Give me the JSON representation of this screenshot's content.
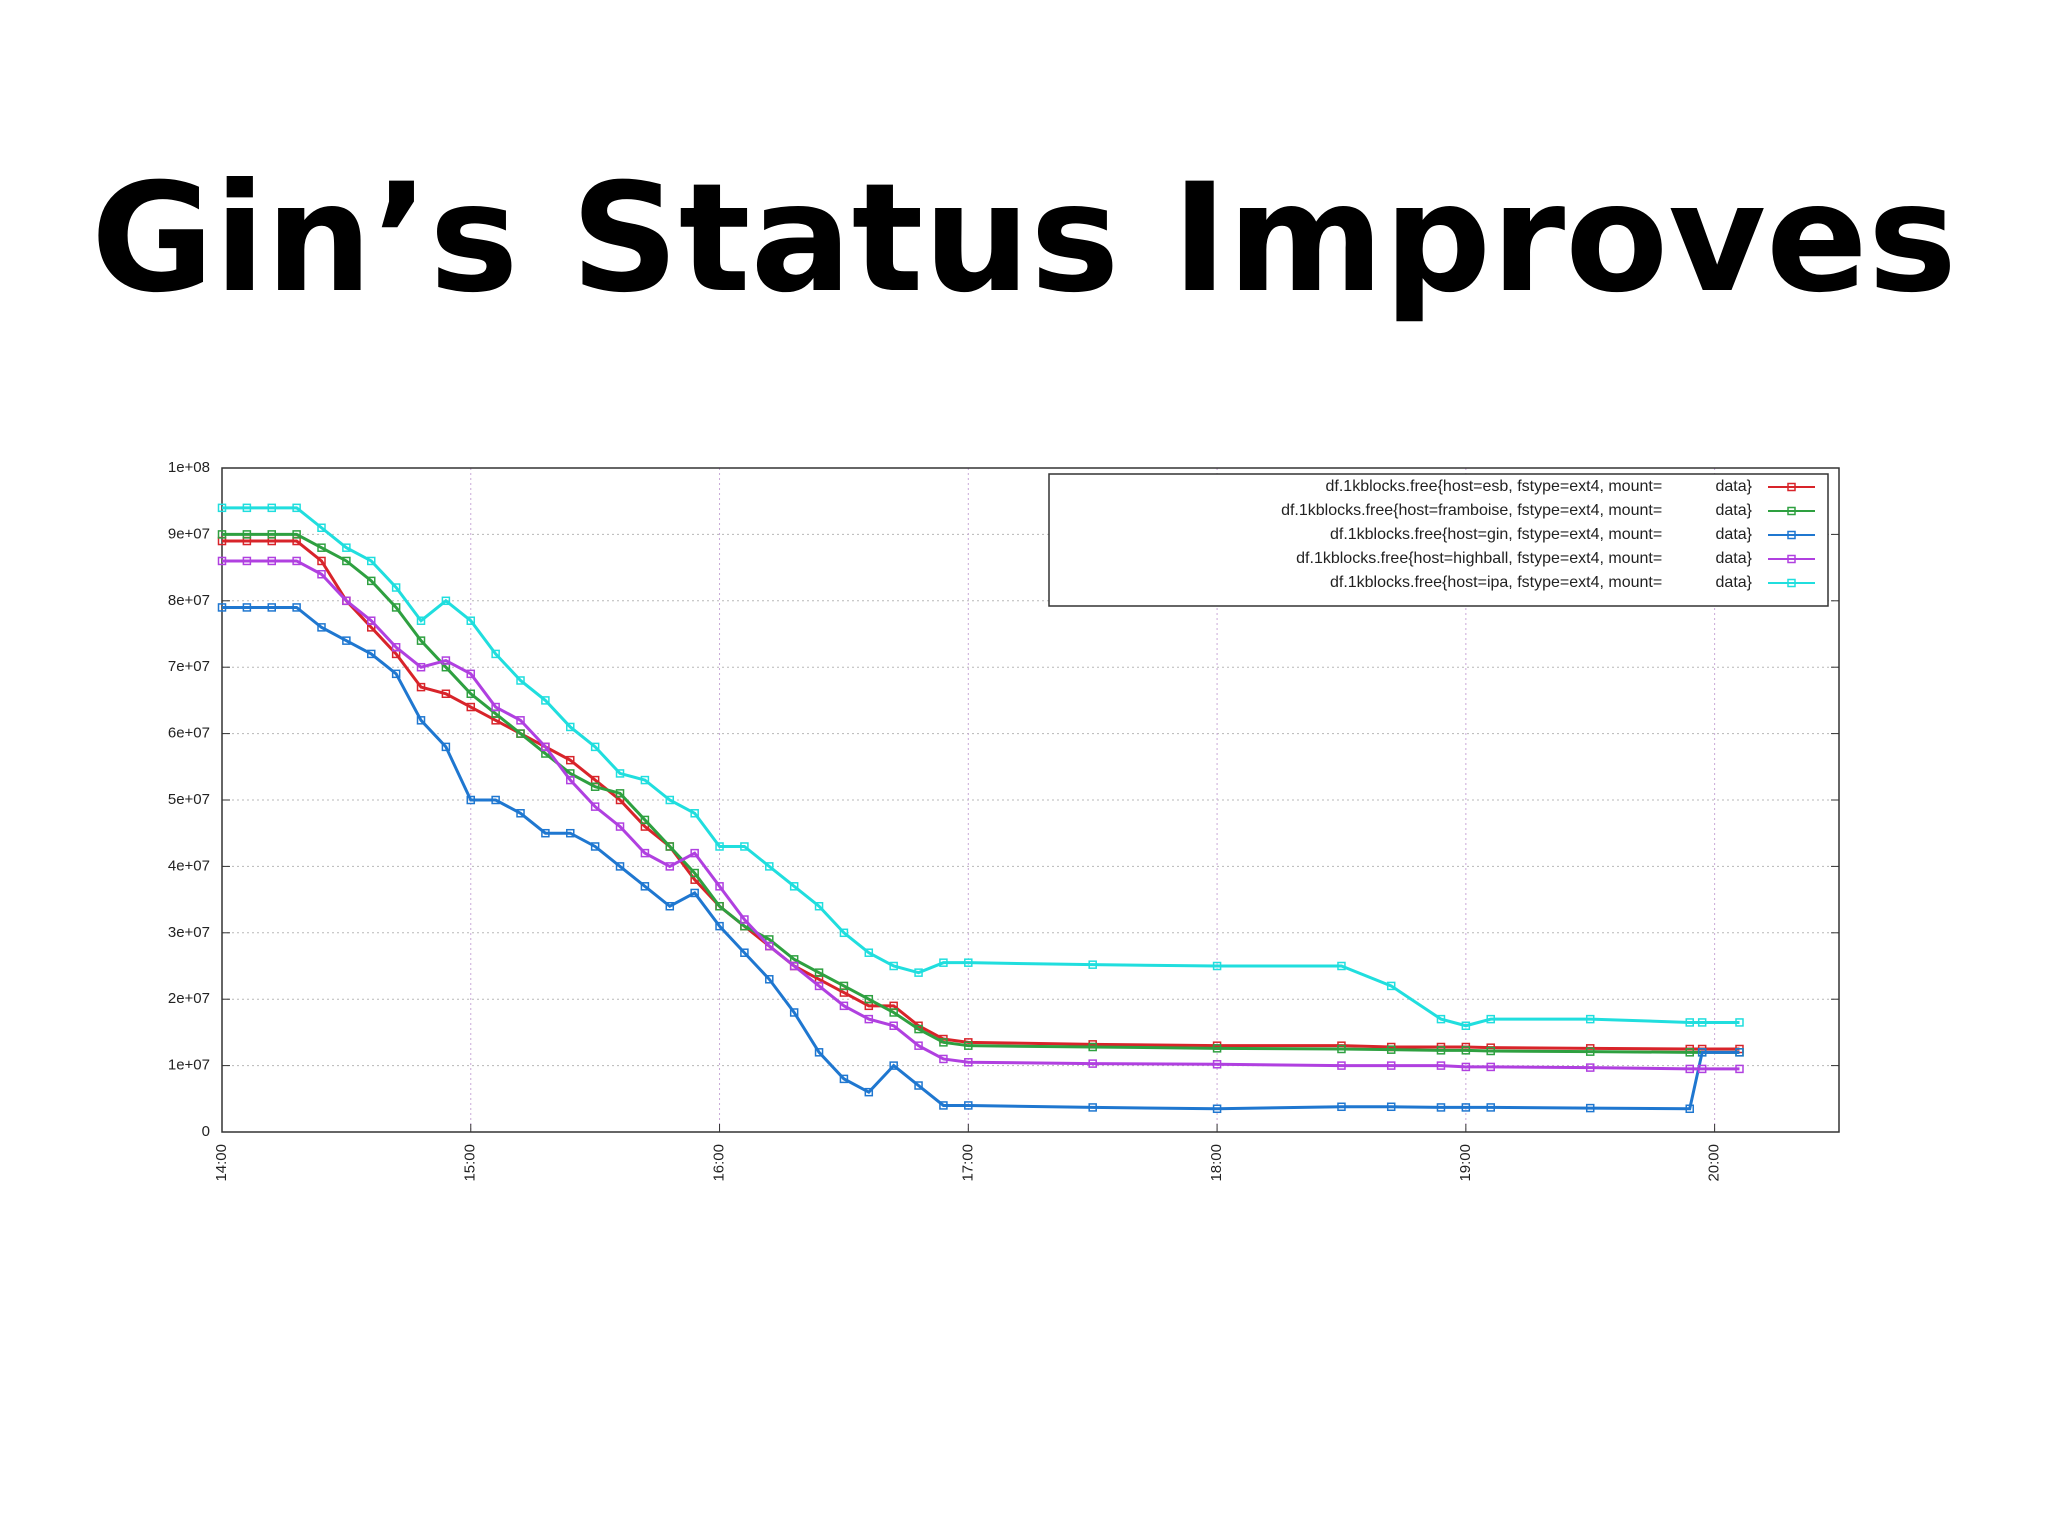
{
  "title": "Gin’s Status Improves",
  "chart_data": {
    "type": "line",
    "x": [
      14,
      14.1,
      14.2,
      14.3,
      14.4,
      14.5,
      14.6,
      14.7,
      14.8,
      14.9,
      15,
      15.1,
      15.2,
      15.3,
      15.4,
      15.5,
      15.6,
      15.7,
      15.8,
      15.9,
      16,
      16.1,
      16.2,
      16.3,
      16.4,
      16.5,
      16.6,
      16.7,
      16.8,
      16.9,
      17,
      17.5,
      18,
      18.5,
      18.7,
      18.9,
      19,
      19.1,
      19.5,
      19.9,
      19.95,
      20.1
    ],
    "series": [
      {
        "name": "df.1kblocks.free{host=esb, fstype=ext4, mount=            data}",
        "color": "#d8242a",
        "values": [
          89000000.0,
          89000000.0,
          89000000.0,
          89000000.0,
          86000000.0,
          80000000.0,
          76000000.0,
          72000000.0,
          67000000.0,
          66000000.0,
          64000000.0,
          62000000.0,
          60000000.0,
          58000000.0,
          56000000.0,
          53000000.0,
          50000000.0,
          46000000.0,
          43000000.0,
          38000000.0,
          34000000.0,
          31000000.0,
          28000000.0,
          25000000.0,
          23000000.0,
          21000000.0,
          19000000.0,
          19000000.0,
          16000000.0,
          14000000.0,
          13500000.0,
          13200000.0,
          13000000.0,
          13000000.0,
          12800000.0,
          12800000.0,
          12800000.0,
          12700000.0,
          12600000.0,
          12500000.0,
          12500000.0,
          12500000.0
        ]
      },
      {
        "name": "df.1kblocks.free{host=framboise, fstype=ext4, mount=            data}",
        "color": "#2ea040",
        "values": [
          90000000.0,
          90000000.0,
          90000000.0,
          90000000.0,
          88000000.0,
          86000000.0,
          83000000.0,
          79000000.0,
          74000000.0,
          70000000.0,
          66000000.0,
          63000000.0,
          60000000.0,
          57000000.0,
          54000000.0,
          52000000.0,
          51000000.0,
          47000000.0,
          43000000.0,
          39000000.0,
          34000000.0,
          31000000.0,
          29000000.0,
          26000000.0,
          24000000.0,
          22000000.0,
          20000000.0,
          18000000.0,
          15500000.0,
          13500000.0,
          13000000.0,
          12800000.0,
          12600000.0,
          12500000.0,
          12400000.0,
          12300000.0,
          12300000.0,
          12200000.0,
          12100000.0,
          12000000.0,
          12000000.0,
          12000000.0
        ]
      },
      {
        "name": "df.1kblocks.free{host=gin, fstype=ext4, mount=            data}",
        "color": "#1f77d0",
        "values": [
          79000000.0,
          79000000.0,
          79000000.0,
          79000000.0,
          76000000.0,
          74000000.0,
          72000000.0,
          69000000.0,
          62000000.0,
          58000000.0,
          50000000.0,
          50000000.0,
          48000000.0,
          45000000.0,
          45000000.0,
          43000000.0,
          40000000.0,
          37000000.0,
          34000000.0,
          36000000.0,
          31000000.0,
          27000000.0,
          23000000.0,
          18000000.0,
          12000000.0,
          8000000.0,
          6000000.0,
          10000000.0,
          7000000.0,
          4000000.0,
          4000000.0,
          3700000.0,
          3500000.0,
          3800000.0,
          3800000.0,
          3700000.0,
          3700000.0,
          3700000.0,
          3600000.0,
          3500000.0,
          12000000.0,
          12000000.0
        ]
      },
      {
        "name": "df.1kblocks.free{host=highball, fstype=ext4, mount=            data}",
        "color": "#b040e0",
        "values": [
          86000000.0,
          86000000.0,
          86000000.0,
          86000000.0,
          84000000.0,
          80000000.0,
          77000000.0,
          73000000.0,
          70000000.0,
          71000000.0,
          69000000.0,
          64000000.0,
          62000000.0,
          58000000.0,
          53000000.0,
          49000000.0,
          46000000.0,
          42000000.0,
          40000000.0,
          42000000.0,
          37000000.0,
          32000000.0,
          28000000.0,
          25000000.0,
          22000000.0,
          19000000.0,
          17000000.0,
          16000000.0,
          13000000.0,
          11000000.0,
          10500000.0,
          10300000.0,
          10200000.0,
          10000000.0,
          10000000.0,
          10000000.0,
          9800000.0,
          9800000.0,
          9700000.0,
          9500000.0,
          9500000.0,
          9500000.0
        ]
      },
      {
        "name": "df.1kblocks.free{host=ipa, fstype=ext4, mount=            data}",
        "color": "#20dede",
        "values": [
          94000000.0,
          94000000.0,
          94000000.0,
          94000000.0,
          91000000.0,
          88000000.0,
          86000000.0,
          82000000.0,
          77000000.0,
          80000000.0,
          77000000.0,
          72000000.0,
          68000000.0,
          65000000.0,
          61000000.0,
          58000000.0,
          54000000.0,
          53000000.0,
          50000000.0,
          48000000.0,
          43000000.0,
          43000000.0,
          40000000.0,
          37000000.0,
          34000000.0,
          30000000.0,
          27000000.0,
          25000000.0,
          24000000.0,
          25500000.0,
          25500000.0,
          25200000.0,
          25000000.0,
          25000000.0,
          22000000.0,
          17000000.0,
          16000000.0,
          17000000.0,
          17000000.0,
          16500000.0,
          16500000.0,
          16500000.0
        ]
      }
    ],
    "xlim": [
      14,
      20.5
    ],
    "xticks": [
      {
        "value": 14,
        "label": "14:00"
      },
      {
        "value": 15,
        "label": "15:00"
      },
      {
        "value": 16,
        "label": "16:00"
      },
      {
        "value": 17,
        "label": "17:00"
      },
      {
        "value": 18,
        "label": "18:00"
      },
      {
        "value": 19,
        "label": "19:00"
      },
      {
        "value": 20,
        "label": "20:00"
      }
    ],
    "ylim": [
      0,
      100000000
    ],
    "yticks": [
      0,
      {
        "value": 10000000,
        "label": "1e+07"
      },
      {
        "value": 20000000,
        "label": "2e+07"
      },
      {
        "value": 30000000,
        "label": "3e+07"
      },
      {
        "value": 40000000,
        "label": "4e+07"
      },
      {
        "value": 50000000,
        "label": "5e+07"
      },
      {
        "value": 60000000,
        "label": "6e+07"
      },
      {
        "value": 70000000,
        "label": "7e+07"
      },
      {
        "value": 80000000,
        "label": "8e+07"
      },
      {
        "value": 90000000,
        "label": "9e+07"
      },
      {
        "value": 100000000,
        "label": "1e+08"
      }
    ],
    "grid": true,
    "legend": "top-right"
  }
}
